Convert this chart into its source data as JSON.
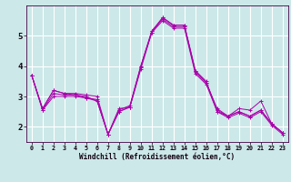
{
  "xlabel": "Windchill (Refroidissement éolien,°C)",
  "background_color": "#cce8e8",
  "plot_bg_color": "#cce8e8",
  "line_color": "#aa00aa",
  "grid_color": "#ffffff",
  "xlim": [
    -0.5,
    23.5
  ],
  "ylim": [
    1.5,
    6.0
  ],
  "yticks": [
    2,
    3,
    4,
    5
  ],
  "xticks": [
    0,
    1,
    2,
    3,
    4,
    5,
    6,
    7,
    8,
    9,
    10,
    11,
    12,
    13,
    14,
    15,
    16,
    17,
    18,
    19,
    20,
    21,
    22,
    23
  ],
  "series": [
    [
      3.7,
      2.6,
      3.2,
      3.1,
      3.1,
      3.05,
      3.0,
      1.75,
      2.6,
      2.65,
      4.0,
      5.15,
      5.6,
      5.35,
      5.35,
      3.85,
      3.5,
      2.5,
      2.35,
      2.6,
      2.55,
      2.85,
      2.1,
      1.8
    ],
    [
      3.7,
      2.6,
      3.2,
      3.1,
      3.05,
      2.95,
      2.9,
      1.75,
      2.55,
      2.7,
      4.0,
      5.1,
      5.6,
      5.35,
      5.35,
      3.85,
      3.45,
      2.6,
      2.35,
      2.5,
      2.35,
      2.55,
      2.1,
      1.8
    ],
    [
      3.7,
      2.55,
      3.1,
      3.05,
      3.05,
      3.0,
      2.85,
      1.75,
      2.5,
      2.65,
      3.95,
      5.15,
      5.55,
      5.3,
      5.3,
      3.8,
      3.45,
      2.55,
      2.35,
      2.5,
      2.35,
      2.55,
      2.1,
      1.8
    ],
    [
      3.7,
      2.55,
      3.0,
      3.0,
      3.0,
      2.95,
      2.85,
      1.75,
      2.5,
      2.65,
      3.9,
      5.1,
      5.5,
      5.25,
      5.25,
      3.75,
      3.4,
      2.5,
      2.3,
      2.45,
      2.3,
      2.5,
      2.05,
      1.75
    ]
  ],
  "xlabel_fontsize": 5.5,
  "ytick_fontsize": 6.5,
  "xtick_fontsize": 4.8
}
